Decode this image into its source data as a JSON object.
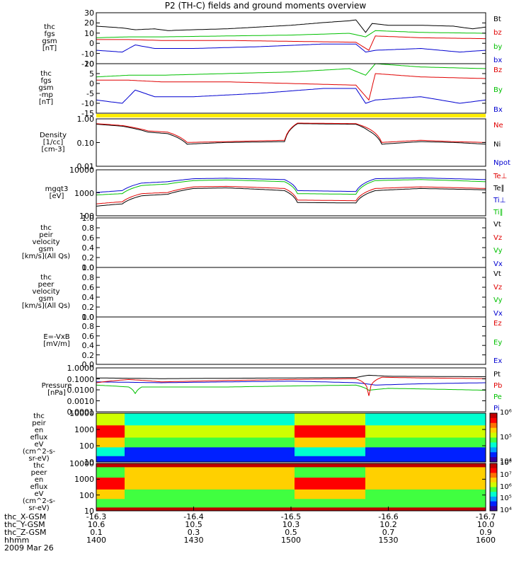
{
  "chart_data": {
    "type": "line",
    "title": "P2 (TH-C) fields and ground moments overview",
    "panels": [
      {
        "id": "fgs",
        "ylabel": [
          "thc",
          "fgs",
          "gsm",
          "[nT]"
        ],
        "ticks": [
          "30",
          "20",
          "10",
          "0",
          "-10",
          "-20"
        ],
        "legend": [
          {
            "name": "Bt",
            "color": "#000000"
          },
          {
            "name": "bz",
            "color": "#e00000"
          },
          {
            "name": "by",
            "color": "#00c000"
          },
          {
            "name": "bx",
            "color": "#0000d0"
          }
        ]
      },
      {
        "id": "fgs_dsl",
        "ylabel": [
          "thc",
          "fgs",
          "gsm",
          "-mp",
          "[nT]"
        ],
        "ticks": [
          "10",
          "5",
          "0",
          "-5",
          "-10",
          "-15"
        ],
        "legend": [
          {
            "name": "Bz",
            "color": "#e00000"
          },
          {
            "name": "By",
            "color": "#00c000"
          },
          {
            "name": "Bx",
            "color": "#0000d0"
          }
        ]
      },
      {
        "id": "density",
        "ylabel": [
          "Density",
          "[1/cc]",
          "[cm-3]"
        ],
        "ticks": [
          "1.00",
          "0.10",
          "0.01"
        ],
        "legend": [
          {
            "name": "Ne",
            "color": "#e00000"
          },
          {
            "name": "Ni",
            "color": "#000000"
          },
          {
            "name": "Npot",
            "color": "#0000d0"
          }
        ]
      },
      {
        "id": "temp",
        "ylabel": [
          "mgqt3",
          "[eV]"
        ],
        "ticks": [
          "10000",
          "1000",
          "100"
        ],
        "legend": [
          {
            "name": "Te⊥",
            "color": "#e00000"
          },
          {
            "name": "Te∥",
            "color": "#000000"
          },
          {
            "name": "Ti⊥",
            "color": "#0000d0"
          },
          {
            "name": "Ti∥",
            "color": "#00c000"
          }
        ]
      },
      {
        "id": "peir_vel",
        "ylabel": [
          "thc",
          "peir",
          "velocity",
          "gsm",
          "[km/s](All Qs)"
        ],
        "ticks": [
          "1.0",
          "0.8",
          "0.6",
          "0.4",
          "0.2",
          "0.0"
        ],
        "legend": [
          {
            "name": "Vt",
            "color": "#000000"
          },
          {
            "name": "Vz",
            "color": "#e00000"
          },
          {
            "name": "Vy",
            "color": "#00c000"
          },
          {
            "name": "Vx",
            "color": "#0000d0"
          }
        ]
      },
      {
        "id": "peer_vel",
        "ylabel": [
          "thc",
          "peer",
          "velocity",
          "gsm",
          "[km/s](All Qs)"
        ],
        "ticks": [
          "1.0",
          "0.8",
          "0.6",
          "0.4",
          "0.2",
          "0.0"
        ],
        "legend": [
          {
            "name": "Vt",
            "color": "#000000"
          },
          {
            "name": "Vz",
            "color": "#e00000"
          },
          {
            "name": "Vy",
            "color": "#00c000"
          },
          {
            "name": "Vx",
            "color": "#0000d0"
          }
        ]
      },
      {
        "id": "efield",
        "ylabel": [
          "E=-VxB",
          "[mV/m]"
        ],
        "ticks": [
          "1.0",
          "0.8",
          "0.6",
          "0.4",
          "0.2",
          "0.0"
        ],
        "legend": [
          {
            "name": "Ez",
            "color": "#e00000"
          },
          {
            "name": "Ey",
            "color": "#00c000"
          },
          {
            "name": "Ex",
            "color": "#0000d0"
          }
        ]
      },
      {
        "id": "pressure",
        "ylabel": [
          "Pressure",
          "[nPa]"
        ],
        "ticks": [
          "1.0000",
          "0.1000",
          "0.0100",
          "0.0010",
          "0.0001"
        ],
        "legend": [
          {
            "name": "Pt",
            "color": "#000000"
          },
          {
            "name": "Pb",
            "color": "#e00000"
          },
          {
            "name": "Pe",
            "color": "#00c000"
          },
          {
            "name": "Pi",
            "color": "#0000d0"
          }
        ]
      },
      {
        "id": "peir_eflux",
        "ylabel": [
          "thc",
          "peir",
          "en",
          "eflux",
          "eV",
          "(cm^2-s-",
          "sr-eV)"
        ],
        "ticks": [
          "10000",
          "1000",
          "100",
          "10"
        ],
        "colorbar": [
          "10⁶",
          "10⁵",
          "10⁴"
        ]
      },
      {
        "id": "peer_eflux",
        "ylabel": [
          "thc",
          "peer",
          "en",
          "eflux",
          "eV",
          "(cm^2-s-",
          "sr-eV)"
        ],
        "ticks": [
          "10000",
          "1000",
          "100",
          "10"
        ],
        "colorbar": [
          "10⁸",
          "10⁷",
          "10⁶",
          "10⁵",
          "10⁴"
        ]
      }
    ],
    "x_axis": {
      "rows": [
        {
          "label": "thc_X-GSM",
          "values": [
            "-16.3",
            "-16.4",
            "-16.5",
            "-16.6",
            "-16.7"
          ]
        },
        {
          "label": "thc_Y-GSM",
          "values": [
            "10.6",
            "10.5",
            "10.3",
            "10.2",
            "10.0"
          ]
        },
        {
          "label": "thc_Z-GSM",
          "values": [
            "0.1",
            "0.3",
            "0.5",
            "0.7",
            "0.9"
          ]
        },
        {
          "label": "hhmm",
          "values": [
            "1400",
            "1430",
            "1500",
            "1530",
            "1600"
          ]
        }
      ],
      "date": "2009 Mar 26",
      "minutes": [
        0,
        30,
        60,
        90,
        120
      ],
      "mid_ticks": [
        "-16.4",
        "-16.5",
        "-16.6"
      ]
    },
    "series": {
      "Bt": [
        [
          0,
          17
        ],
        [
          8,
          15
        ],
        [
          12,
          13
        ],
        [
          18,
          14
        ],
        [
          22,
          12
        ],
        [
          30,
          13
        ],
        [
          40,
          14
        ],
        [
          50,
          16
        ],
        [
          60,
          18
        ],
        [
          70,
          21
        ],
        [
          78,
          23
        ],
        [
          80,
          24
        ],
        [
          83,
          10
        ],
        [
          85,
          20
        ],
        [
          90,
          18
        ],
        [
          100,
          18
        ],
        [
          110,
          17
        ],
        [
          116,
          14
        ],
        [
          120,
          16
        ]
      ],
      "bz": [
        [
          0,
          2
        ],
        [
          10,
          2
        ],
        [
          20,
          1
        ],
        [
          40,
          1
        ],
        [
          60,
          0
        ],
        [
          80,
          -1
        ],
        [
          84,
          -10
        ],
        [
          86,
          6
        ],
        [
          100,
          4
        ],
        [
          120,
          3
        ]
      ],
      "by": [
        [
          0,
          4
        ],
        [
          10,
          5
        ],
        [
          20,
          5
        ],
        [
          40,
          6
        ],
        [
          60,
          7
        ],
        [
          78,
          9
        ],
        [
          83,
          5
        ],
        [
          86,
          12
        ],
        [
          100,
          10
        ],
        [
          120,
          9
        ]
      ],
      "bx": [
        [
          0,
          -10
        ],
        [
          8,
          -12
        ],
        [
          12,
          -4
        ],
        [
          18,
          -8
        ],
        [
          30,
          -8
        ],
        [
          50,
          -6
        ],
        [
          70,
          -3
        ],
        [
          80,
          -3
        ],
        [
          83,
          -12
        ],
        [
          86,
          -10
        ],
        [
          100,
          -8
        ],
        [
          112,
          -12
        ],
        [
          120,
          -10
        ]
      ],
      "Ne": [
        [
          0,
          0.85
        ],
        [
          8,
          0.7
        ],
        [
          16,
          0.4
        ],
        [
          22,
          0.35
        ],
        [
          28,
          0.12
        ],
        [
          40,
          0.13
        ],
        [
          58,
          0.15
        ],
        [
          62,
          0.9
        ],
        [
          80,
          0.85
        ],
        [
          84,
          0.5
        ],
        [
          88,
          0.12
        ],
        [
          100,
          0.15
        ],
        [
          110,
          0.13
        ],
        [
          120,
          0.12
        ]
      ],
      "Ni": [
        [
          0,
          0.8
        ],
        [
          8,
          0.65
        ],
        [
          16,
          0.35
        ],
        [
          22,
          0.3
        ],
        [
          28,
          0.1
        ],
        [
          40,
          0.12
        ],
        [
          58,
          0.13
        ],
        [
          62,
          0.85
        ],
        [
          80,
          0.8
        ],
        [
          84,
          0.4
        ],
        [
          88,
          0.1
        ],
        [
          100,
          0.13
        ],
        [
          110,
          0.12
        ],
        [
          120,
          0.1
        ]
      ],
      "Te_perp": [
        [
          0,
          150
        ],
        [
          8,
          200
        ],
        [
          14,
          600
        ],
        [
          22,
          700
        ],
        [
          30,
          1500
        ],
        [
          40,
          1600
        ],
        [
          58,
          1200
        ],
        [
          62,
          250
        ],
        [
          80,
          230
        ],
        [
          86,
          1200
        ],
        [
          100,
          1500
        ],
        [
          120,
          1200
        ]
      ],
      "Te_par": [
        [
          0,
          110
        ],
        [
          8,
          150
        ],
        [
          14,
          450
        ],
        [
          22,
          550
        ],
        [
          30,
          1200
        ],
        [
          40,
          1300
        ],
        [
          58,
          900
        ],
        [
          62,
          180
        ],
        [
          80,
          170
        ],
        [
          86,
          900
        ],
        [
          100,
          1200
        ],
        [
          120,
          1000
        ]
      ],
      "Ti_perp": [
        [
          0,
          700
        ],
        [
          8,
          900
        ],
        [
          14,
          2500
        ],
        [
          22,
          3000
        ],
        [
          30,
          4500
        ],
        [
          40,
          4800
        ],
        [
          58,
          4000
        ],
        [
          62,
          900
        ],
        [
          80,
          800
        ],
        [
          86,
          4500
        ],
        [
          100,
          5000
        ],
        [
          120,
          4000
        ]
      ],
      "Ti_par": [
        [
          0,
          500
        ],
        [
          8,
          600
        ],
        [
          14,
          1800
        ],
        [
          22,
          2200
        ],
        [
          30,
          3500
        ],
        [
          40,
          3800
        ],
        [
          58,
          3000
        ],
        [
          62,
          600
        ],
        [
          80,
          550
        ],
        [
          86,
          3500
        ],
        [
          100,
          4000
        ],
        [
          120,
          3000
        ]
      ],
      "Pt": [
        [
          0,
          0.14
        ],
        [
          20,
          0.12
        ],
        [
          40,
          0.13
        ],
        [
          60,
          0.14
        ],
        [
          80,
          0.15
        ],
        [
          84,
          0.25
        ],
        [
          90,
          0.2
        ],
        [
          120,
          0.18
        ]
      ],
      "Pb": [
        [
          0,
          0.05
        ],
        [
          10,
          0.1
        ],
        [
          20,
          0.06
        ],
        [
          40,
          0.08
        ],
        [
          60,
          0.1
        ],
        [
          80,
          0.12
        ],
        [
          84,
          0.003
        ],
        [
          88,
          0.16
        ],
        [
          100,
          0.14
        ],
        [
          120,
          0.12
        ]
      ],
      "Pe": [
        [
          0,
          0.03
        ],
        [
          10,
          0.02
        ],
        [
          12,
          0.005
        ],
        [
          14,
          0.02
        ],
        [
          40,
          0.02
        ],
        [
          60,
          0.025
        ],
        [
          80,
          0.03
        ],
        [
          84,
          0.01
        ],
        [
          90,
          0.015
        ],
        [
          120,
          0.01
        ]
      ],
      "Pi": [
        [
          0,
          0.06
        ],
        [
          20,
          0.05
        ],
        [
          40,
          0.06
        ],
        [
          60,
          0.07
        ],
        [
          80,
          0.05
        ],
        [
          86,
          0.03
        ],
        [
          100,
          0.04
        ],
        [
          120,
          0.05
        ]
      ]
    }
  }
}
